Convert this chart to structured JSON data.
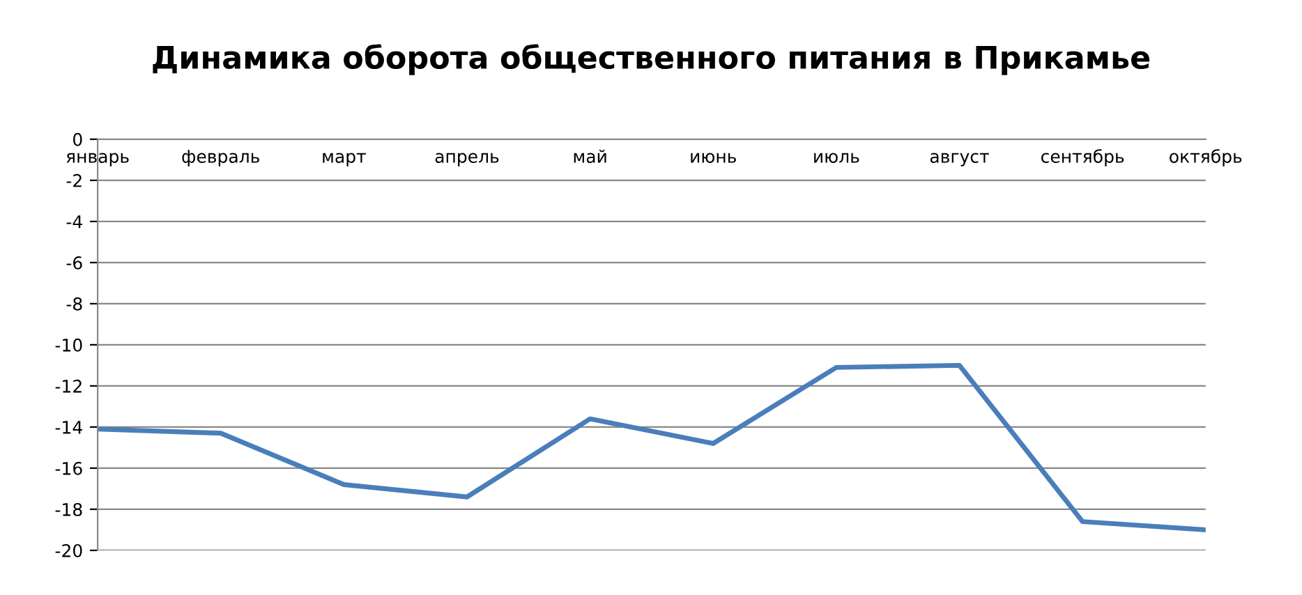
{
  "chart_data": {
    "type": "line",
    "title": "Динамика оборота общественного питания в Прикамье",
    "categories": [
      "январь",
      "февраль",
      "март",
      "апрель",
      "май",
      "июнь",
      "июль",
      "август",
      "сентябрь",
      "октябрь"
    ],
    "series": [
      {
        "color": "#4a7ebb",
        "values": [
          -14.1,
          -14.3,
          -16.8,
          -17.4,
          -13.6,
          -14.8,
          -11.1,
          -11.0,
          -18.6,
          -19.0
        ]
      }
    ],
    "ylim": [
      -20,
      0
    ],
    "yticks": [
      -20,
      -18,
      -16,
      -14,
      -12,
      -10,
      -8,
      -6,
      -4,
      -2,
      0
    ],
    "grid": "y",
    "legend": false,
    "marker": "none",
    "line_style": "solid"
  }
}
